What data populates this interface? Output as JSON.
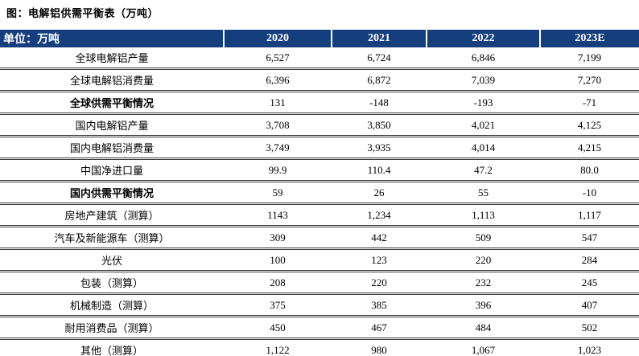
{
  "title": "图：电解铝供需平衡表（万吨）",
  "colors": {
    "header_bg": "#153e7d",
    "header_text": "#ffffff",
    "row_divider": "#3c3c3c"
  },
  "table": {
    "unit_label": "单位：万吨",
    "columns": [
      "2020",
      "2021",
      "2022",
      "2023E"
    ],
    "rows": [
      {
        "label": "全球电解铝产量",
        "bold": false,
        "values": [
          "6,527",
          "6,724",
          "6,846",
          "7,199"
        ]
      },
      {
        "label": "全球电解铝消费量",
        "bold": false,
        "values": [
          "6,396",
          "6,872",
          "7,039",
          "7,270"
        ]
      },
      {
        "label": "全球供需平衡情况",
        "bold": true,
        "values": [
          "131",
          "-148",
          "-193",
          "-71"
        ]
      },
      {
        "label": "国内电解铝产量",
        "bold": false,
        "values": [
          "3,708",
          "3,850",
          "4,021",
          "4,125"
        ]
      },
      {
        "label": "国内电解铝消费量",
        "bold": false,
        "values": [
          "3,749",
          "3,935",
          "4,014",
          "4,215"
        ]
      },
      {
        "label": "中国净进口量",
        "bold": false,
        "values": [
          "99.9",
          "110.4",
          "47.2",
          "80.0"
        ]
      },
      {
        "label": "国内供需平衡情况",
        "bold": true,
        "values": [
          "59",
          "26",
          "55",
          "-10"
        ]
      },
      {
        "label": "房地产建筑（测算）",
        "bold": false,
        "values": [
          "1143",
          "1,234",
          "1,113",
          "1,117"
        ]
      },
      {
        "label": "汽车及新能源车（测算）",
        "bold": false,
        "values": [
          "309",
          "442",
          "509",
          "547"
        ]
      },
      {
        "label": "光伏",
        "bold": false,
        "values": [
          "100",
          "123",
          "220",
          "284"
        ]
      },
      {
        "label": "包装（测算）",
        "bold": false,
        "values": [
          "208",
          "220",
          "232",
          "245"
        ]
      },
      {
        "label": "机械制造（测算）",
        "bold": false,
        "values": [
          "375",
          "385",
          "396",
          "407"
        ]
      },
      {
        "label": "耐用消费品（测算）",
        "bold": false,
        "values": [
          "450",
          "467",
          "484",
          "502"
        ]
      },
      {
        "label": "其他（测算）",
        "bold": false,
        "values": [
          "1,122",
          "980",
          "1,067",
          "1,023"
        ]
      }
    ]
  }
}
